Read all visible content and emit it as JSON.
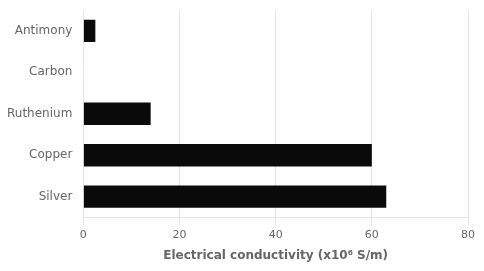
{
  "chart_data": {
    "type": "bar",
    "orientation": "horizontal",
    "categories": [
      "Antimony",
      "Carbon",
      "Ruthenium",
      "Copper",
      "Silver"
    ],
    "values": [
      2.5,
      0.1,
      14,
      60,
      63
    ],
    "color": "#0a0a0a",
    "xlabel": "Electrical conductivity (x10⁶ S/m)",
    "xlim": [
      0,
      80
    ],
    "xticks": [
      0,
      20,
      40,
      60,
      80
    ],
    "grid": true
  }
}
